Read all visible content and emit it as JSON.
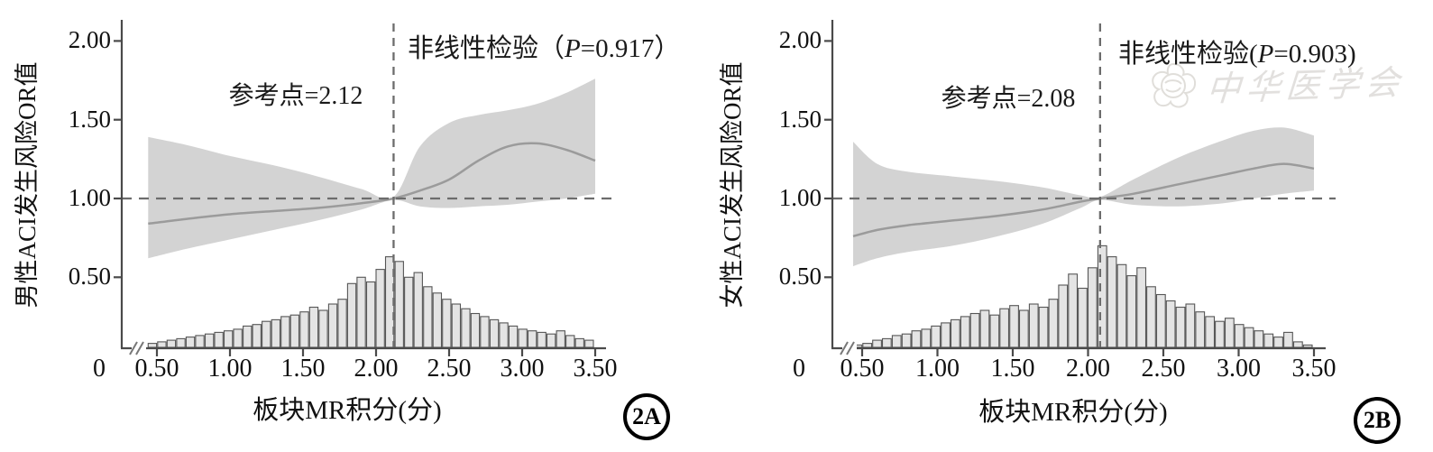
{
  "page": {
    "background": "#ffffff"
  },
  "colors": {
    "band": "#d3d3d3",
    "curve": "#9b9b9b",
    "axis": "#4a4a4a",
    "dashed_line": "#6c6c6c",
    "bar_fill": "#e4e4e4",
    "bar_stroke": "#565656",
    "text": "#111111",
    "watermark": "#e2e0de"
  },
  "watermark": {
    "logo": "cma-flower-logo",
    "text": "中华医学会"
  },
  "panels": [
    {
      "badge": "2A",
      "y_axis_label": "男性ACI发生风险OR值",
      "x_axis_label": "板块MR积分(分)",
      "reference_annotation": "参考点=2.12",
      "nonlinear_test": {
        "prefix": "非线性检验（",
        "p": "P",
        "suffix": "=0.917）"
      },
      "chart_data": {
        "type": "line",
        "subtype": "restricted-cubic-spline with 95% CI band and histogram",
        "title": "",
        "xlabel": "板块MR积分(分)",
        "ylabel": "男性ACI发生风险OR值",
        "x_tick_labels": [
          "0",
          "0.50",
          "1.00",
          "1.50",
          "2.00",
          "2.50",
          "3.00",
          "3.50"
        ],
        "x_tick_values": [
          0,
          0.5,
          1.0,
          1.5,
          2.0,
          2.5,
          3.0,
          3.5
        ],
        "y_tick_labels": [
          "2.00",
          "1.50",
          "1.00",
          "0.50"
        ],
        "y_tick_values": [
          2.0,
          1.5,
          1.0,
          0.5
        ],
        "ylim": [
          0.05,
          2.1
        ],
        "xlim": [
          0,
          3.6
        ],
        "x_axis_break_after_zero": true,
        "reference_point_x": 2.12,
        "reference_or_line": 1.0,
        "nonlinear_p_value": 0.917,
        "curve": {
          "x": [
            0.44,
            0.7,
            1.0,
            1.3,
            1.6,
            1.9,
            2.12,
            2.3,
            2.5,
            2.7,
            2.9,
            3.1,
            3.3,
            3.5
          ],
          "or": [
            0.84,
            0.87,
            0.9,
            0.92,
            0.94,
            0.97,
            1.0,
            1.05,
            1.12,
            1.24,
            1.33,
            1.35,
            1.31,
            1.24
          ],
          "upper": [
            1.39,
            1.34,
            1.27,
            1.21,
            1.14,
            1.06,
            1.01,
            1.33,
            1.48,
            1.53,
            1.56,
            1.6,
            1.67,
            1.76
          ],
          "lower": [
            0.62,
            0.68,
            0.74,
            0.8,
            0.86,
            0.93,
            0.99,
            0.95,
            0.94,
            0.95,
            0.96,
            0.98,
            1.0,
            1.03
          ]
        },
        "histogram": {
          "start_x": 0.44,
          "bin_width": 0.065,
          "baseline_or": 0.05,
          "bar_top_values": [
            0.08,
            0.09,
            0.1,
            0.11,
            0.12,
            0.13,
            0.14,
            0.15,
            0.16,
            0.17,
            0.19,
            0.2,
            0.22,
            0.23,
            0.25,
            0.26,
            0.28,
            0.31,
            0.29,
            0.33,
            0.36,
            0.46,
            0.5,
            0.47,
            0.55,
            0.63,
            0.6,
            0.5,
            0.53,
            0.44,
            0.4,
            0.36,
            0.33,
            0.3,
            0.27,
            0.25,
            0.23,
            0.21,
            0.19,
            0.17,
            0.16,
            0.15,
            0.14,
            0.16,
            0.13,
            0.11,
            0.1
          ]
        }
      }
    },
    {
      "badge": "2B",
      "y_axis_label": "女性ACI发生风险OR值",
      "x_axis_label": "板块MR积分(分)",
      "reference_annotation": "参考点=2.08",
      "nonlinear_test": {
        "prefix": "非线性检验(",
        "p": "P",
        "suffix": "=0.903)"
      },
      "chart_data": {
        "type": "line",
        "subtype": "restricted-cubic-spline with 95% CI band and histogram",
        "title": "",
        "xlabel": "板块MR积分(分)",
        "ylabel": "女性ACI发生风险OR值",
        "x_tick_labels": [
          "0",
          "0.50",
          "1.00",
          "1.50",
          "2.00",
          "2.50",
          "3.00",
          "3.50"
        ],
        "x_tick_values": [
          0,
          0.5,
          1.0,
          1.5,
          2.0,
          2.5,
          3.0,
          3.5
        ],
        "y_tick_labels": [
          "2.00",
          "1.50",
          "1.00",
          "0.50"
        ],
        "y_tick_values": [
          2.0,
          1.5,
          1.0,
          0.5
        ],
        "ylim": [
          0.05,
          2.1
        ],
        "xlim": [
          0,
          3.6
        ],
        "x_axis_break_after_zero": true,
        "reference_point_x": 2.08,
        "reference_or_line": 1.0,
        "nonlinear_p_value": 0.903,
        "curve": {
          "x": [
            0.44,
            0.6,
            0.8,
            1.1,
            1.4,
            1.7,
            1.95,
            2.08,
            2.3,
            2.6,
            2.9,
            3.1,
            3.3,
            3.5
          ],
          "or": [
            0.76,
            0.8,
            0.83,
            0.86,
            0.89,
            0.93,
            0.98,
            1.0,
            1.03,
            1.09,
            1.15,
            1.19,
            1.22,
            1.19
          ],
          "upper": [
            1.36,
            1.22,
            1.17,
            1.14,
            1.11,
            1.07,
            1.02,
            1.01,
            1.12,
            1.26,
            1.37,
            1.43,
            1.45,
            1.4
          ],
          "lower": [
            0.57,
            0.62,
            0.66,
            0.7,
            0.76,
            0.84,
            0.94,
            0.99,
            0.96,
            0.95,
            0.97,
            1.0,
            1.03,
            1.05
          ]
        },
        "histogram": {
          "start_x": 0.44,
          "bin_width": 0.065,
          "baseline_or": 0.05,
          "bar_top_values": [
            0.07,
            0.08,
            0.1,
            0.11,
            0.13,
            0.14,
            0.16,
            0.17,
            0.19,
            0.21,
            0.23,
            0.25,
            0.27,
            0.29,
            0.26,
            0.3,
            0.32,
            0.29,
            0.33,
            0.31,
            0.36,
            0.45,
            0.52,
            0.43,
            0.56,
            0.7,
            0.63,
            0.58,
            0.51,
            0.56,
            0.44,
            0.39,
            0.35,
            0.31,
            0.33,
            0.28,
            0.25,
            0.22,
            0.24,
            0.2,
            0.18,
            0.16,
            0.14,
            0.12,
            0.15,
            0.09,
            0.07
          ]
        }
      }
    }
  ]
}
